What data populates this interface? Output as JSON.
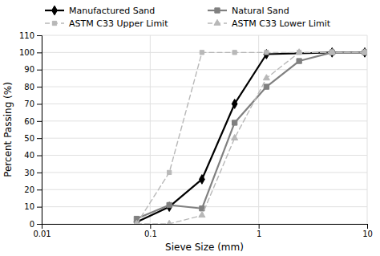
{
  "chart_data": {
    "type": "line",
    "xlabel": "Sieve Size (mm)",
    "ylabel": "Percent Passing (%)",
    "log": "x",
    "grid": true,
    "legend": "top",
    "xlim": [
      0.01,
      10
    ],
    "xticks": [
      0.01,
      0.1,
      1,
      10
    ],
    "ylim": [
      0,
      110
    ],
    "yticks": [
      0,
      10,
      20,
      30,
      40,
      50,
      60,
      70,
      80,
      90,
      100,
      110
    ],
    "series": [
      {
        "name": "Manufactured Sand",
        "color": "#000000",
        "marker": "diamond",
        "line_style": "solid",
        "x": [
          0.075,
          0.15,
          0.3,
          0.6,
          1.18,
          4.75,
          9.5
        ],
        "values": [
          1,
          10,
          26,
          70,
          99,
          100,
          100
        ]
      },
      {
        "name": "Natural Sand",
        "color": "#808080",
        "marker": "square",
        "line_style": "solid",
        "x": [
          0.075,
          0.15,
          0.3,
          0.6,
          1.18,
          2.36,
          4.75,
          9.5
        ],
        "values": [
          3,
          11,
          9,
          59,
          80,
          95,
          100,
          100
        ]
      },
      {
        "name": "ASTM C33 Upper Limit",
        "color": "#b8b8b8",
        "marker": "square",
        "line_style": "dashed",
        "x": [
          0.075,
          0.15,
          0.3,
          0.6,
          1.18,
          2.36,
          4.75,
          9.5
        ],
        "values": [
          0,
          30,
          100,
          100,
          100,
          100,
          100,
          100
        ]
      },
      {
        "name": "ASTM C33 Lower Limit",
        "color": "#b8b8b8",
        "marker": "triangle",
        "line_style": "dashed",
        "x": [
          0.075,
          0.15,
          0.3,
          0.6,
          1.18,
          2.36,
          4.75,
          9.5
        ],
        "values": [
          0,
          0,
          5,
          50,
          85,
          100,
          100,
          100
        ]
      }
    ]
  }
}
